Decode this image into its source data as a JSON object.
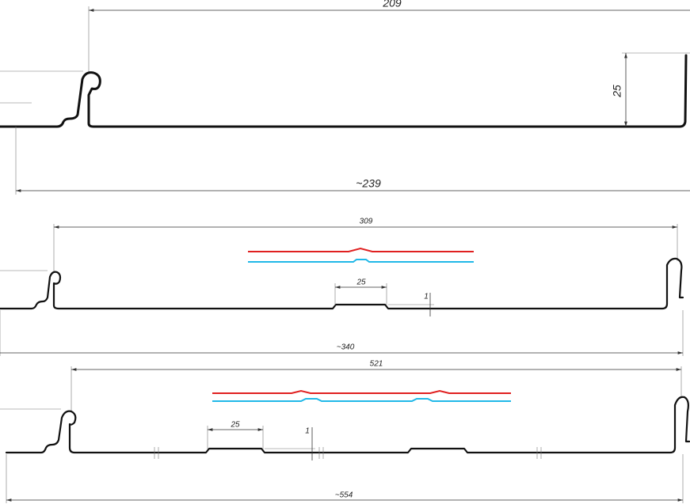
{
  "profiles": [
    {
      "width": "209",
      "height": "25",
      "total": "~239"
    },
    {
      "width": "309",
      "rib_width": "25",
      "rib_height": "1",
      "total": "~340"
    },
    {
      "width": "521",
      "rib_width": "25",
      "rib_height": "1",
      "total": "~554"
    }
  ]
}
